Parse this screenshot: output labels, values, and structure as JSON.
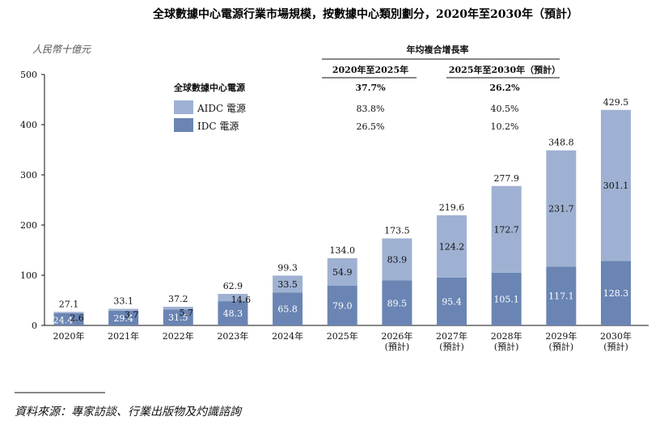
{
  "chart_data": {
    "type": "bar",
    "stacked": true,
    "title": "全球數據中心電源行業市場規模，按數據中心類別劃分，2020年至2030年（預計）",
    "ylabel": "人民幣十億元",
    "ylim": [
      0,
      500
    ],
    "yticks": [
      0,
      100,
      200,
      300,
      400,
      500
    ],
    "categories": [
      [
        "2020年"
      ],
      [
        "2021年"
      ],
      [
        "2022年"
      ],
      [
        "2023年"
      ],
      [
        "2024年"
      ],
      [
        "2025年"
      ],
      [
        "2026年",
        "(預計)"
      ],
      [
        "2027年",
        "(預計)"
      ],
      [
        "2028年",
        "(預計)"
      ],
      [
        "2029年",
        "(預計)"
      ],
      [
        "2030年",
        "(預計)"
      ]
    ],
    "series": [
      {
        "name": "IDC 電源",
        "color": "#6a85b3",
        "values": [
          24.4,
          29.4,
          31.5,
          48.3,
          65.8,
          79.0,
          89.5,
          95.4,
          105.1,
          117.1,
          128.3
        ],
        "labels": [
          "24.4",
          "29.4",
          "31.5",
          "48.3",
          "65.8",
          "79.0",
          "89.5",
          "95.4",
          "105.1",
          "117.1",
          "128.3"
        ]
      },
      {
        "name": "AIDC 電源",
        "color": "#9fb1d2",
        "values": [
          2.6,
          3.7,
          5.7,
          14.6,
          33.5,
          54.9,
          83.9,
          124.2,
          172.7,
          231.7,
          301.1
        ],
        "labels": [
          "2.6",
          "3.7",
          "5.7",
          "14.6",
          "33.5",
          "54.9",
          "83.9",
          "124.2",
          "172.7",
          "231.7",
          "301.1"
        ]
      }
    ],
    "totals": [
      "27.1",
      "33.1",
      "37.2",
      "62.9",
      "99.3",
      "134.0",
      "173.5",
      "219.6",
      "277.9",
      "348.8",
      "429.5"
    ],
    "cagr_table": {
      "header": "年均複合增長率",
      "columns": [
        "2020年至2025年",
        "2025年至2030年（預計）"
      ],
      "rows": [
        {
          "label": "全球數據中心電源",
          "values": [
            "37.7%",
            "26.2%"
          ],
          "bold": true
        },
        {
          "label": "AIDC 電源",
          "values": [
            "83.8%",
            "40.5%"
          ]
        },
        {
          "label": "IDC 電源",
          "values": [
            "26.5%",
            "10.2%"
          ]
        }
      ]
    },
    "grid": false,
    "legend": "top-left"
  },
  "source": "資料來源：專家訪談、行業出版物及灼識諮詢"
}
